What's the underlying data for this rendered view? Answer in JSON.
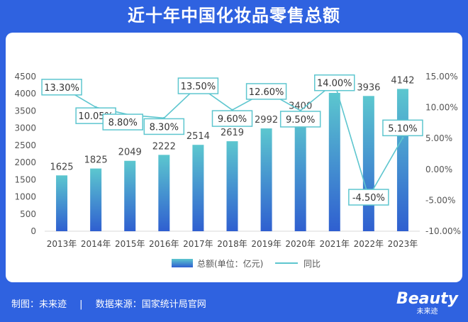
{
  "header": {
    "title": "近十年中国化妆品零售总额"
  },
  "footer": {
    "made_by": "制图：未来迹",
    "separator": "|",
    "source": "数据来源：国家统计局官网",
    "brand": "Beauty",
    "brand_sub": "未来迹"
  },
  "colors": {
    "page_bg": "#2f62e0",
    "bar_top": "#5cc7cf",
    "bar_bottom": "#2f5fd0",
    "line": "#5ec6cf"
  },
  "chart_data": {
    "type": "bar",
    "title": "",
    "categories": [
      "2013年",
      "2014年",
      "2015年",
      "2016年",
      "2017年",
      "2018年",
      "2019年",
      "2020年",
      "2021年",
      "2022年",
      "2023年"
    ],
    "series": [
      {
        "name": "总额(单位：亿元)",
        "type": "bar",
        "axis": "left",
        "values": [
          1625,
          1825,
          2049,
          2222,
          2514,
          2619,
          2992,
          3400,
          4026,
          3936,
          4142
        ],
        "labels": [
          "1625",
          "1825",
          "2049",
          "2222",
          "2514",
          "2619",
          "2992",
          "3400",
          "4026",
          "3936",
          "4142"
        ]
      },
      {
        "name": "同比",
        "type": "line",
        "axis": "right",
        "values": [
          13.3,
          10.05,
          8.8,
          8.3,
          13.5,
          9.6,
          12.6,
          9.5,
          14.0,
          -4.5,
          5.1
        ],
        "labels": [
          "13.30%",
          "10.05%",
          "8.80%",
          "8.30%",
          "13.50%",
          "9.60%",
          "12.60%",
          "9.50%",
          "14.00%",
          "-4.50%",
          "5.10%"
        ]
      }
    ],
    "y_left": {
      "min": 0,
      "max": 4500,
      "ticks": [
        "0",
        "500",
        "1000",
        "1500",
        "2000",
        "2500",
        "3000",
        "3500",
        "4000",
        "4500"
      ]
    },
    "y_right": {
      "min": -10,
      "max": 15,
      "ticks": [
        "-10.00%",
        "-5.00%",
        "0.00%",
        "5.00%",
        "10.00%",
        "15.00%"
      ]
    },
    "legend": {
      "position": "bottom",
      "items": [
        "总额(单位：亿元)",
        "同比"
      ]
    },
    "grid": false
  }
}
